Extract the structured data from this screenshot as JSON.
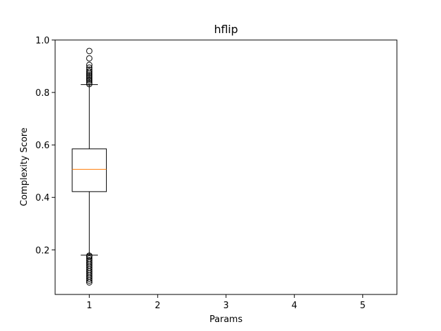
{
  "chart_data": {
    "type": "box",
    "title": "hflip",
    "xlabel": "Params",
    "ylabel": "Complexity Score",
    "categories": [
      "1",
      "2",
      "3",
      "4",
      "5"
    ],
    "xlim": [
      0.5,
      5.5
    ],
    "ylim": [
      0.03,
      1.0
    ],
    "yticks": [
      "0.2",
      "0.4",
      "0.6",
      "0.8",
      "1.0"
    ],
    "ytick_values": [
      0.2,
      0.4,
      0.6,
      0.8,
      1.0
    ],
    "grid": false,
    "boxes": [
      {
        "position": 1,
        "whisker_low": 0.18,
        "q1": 0.422,
        "median": 0.507,
        "q3": 0.585,
        "whisker_high": 0.83,
        "outliers_high": [
          0.832,
          0.838,
          0.845,
          0.85,
          0.856,
          0.862,
          0.868,
          0.874,
          0.88,
          0.887,
          0.895,
          0.905,
          0.93,
          0.958
        ],
        "outliers_low": [
          0.076,
          0.083,
          0.09,
          0.097,
          0.104,
          0.111,
          0.118,
          0.125,
          0.132,
          0.139,
          0.146,
          0.153,
          0.16,
          0.167,
          0.174,
          0.178
        ]
      }
    ],
    "colors": {
      "box": "#000000",
      "median": "#ff7f0e",
      "whisker": "#000000",
      "outlier": "#000000"
    }
  }
}
